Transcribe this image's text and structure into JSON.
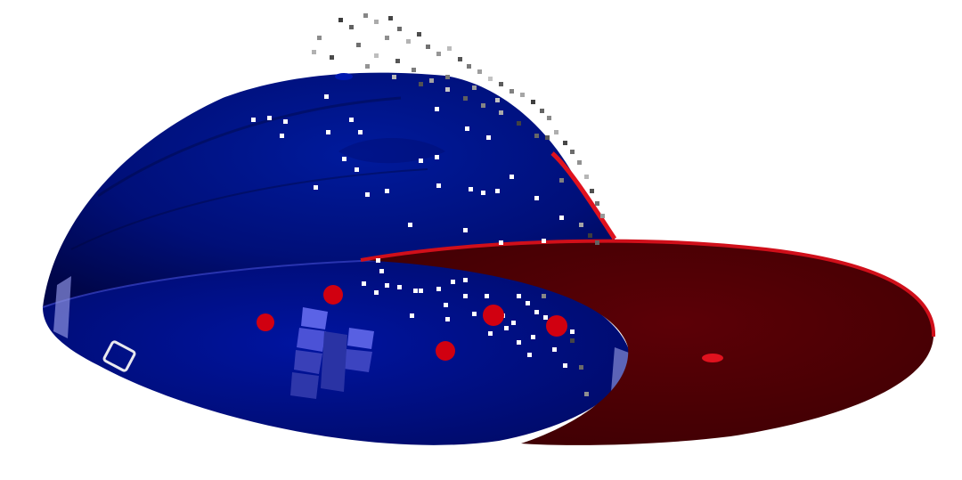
{
  "scene": {
    "kind": "3d-render",
    "background": "#ffffff",
    "colors": {
      "dome_dark": "#000a55",
      "dome_mid": "#001390",
      "dome_inner": "#000c7a",
      "facet_highlight": "#5b63e6",
      "disk_fill": "#520003",
      "disk_edge": "#d00f1a",
      "red_marker": "#d10010",
      "white_marker": "#ffffff",
      "grey_marker": "#555555"
    },
    "counts": {
      "red_sphere_markers": 5,
      "white_square_markers": 60,
      "grey_point_cloud_markers": 60
    }
  }
}
